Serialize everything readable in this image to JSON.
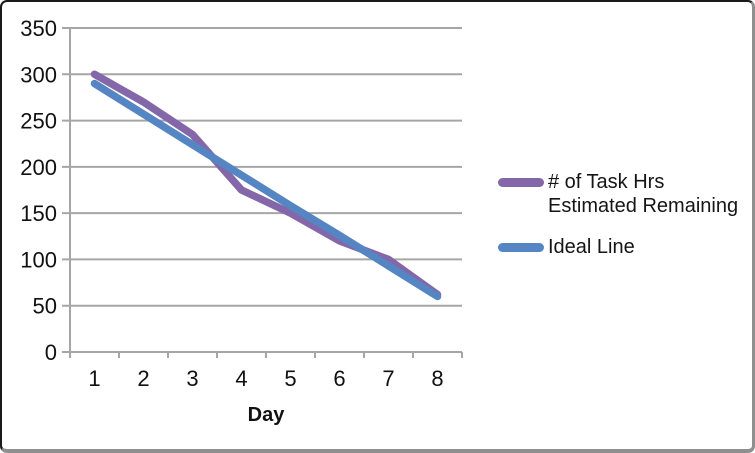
{
  "chart_data": {
    "type": "line",
    "title": "",
    "xlabel": "Day",
    "ylabel": "",
    "categories": [
      1,
      2,
      3,
      4,
      5,
      6,
      7,
      8
    ],
    "x_tick_labels": [
      "1",
      "2",
      "3",
      "4",
      "5",
      "6",
      "7",
      "8"
    ],
    "y_tick_labels": [
      "0",
      "50",
      "100",
      "150",
      "200",
      "250",
      "300",
      "350"
    ],
    "ylim": [
      0,
      350
    ],
    "grid": true,
    "legend_position": "right",
    "series": [
      {
        "name": "# of Task Hrs Estimated Remaining",
        "color": "#8467A8",
        "values": [
          300,
          270,
          235,
          175,
          150,
          120,
          100,
          62
        ]
      },
      {
        "name": "Ideal Line",
        "color": "#5586C3",
        "values": [
          290,
          257,
          224,
          191,
          158,
          126,
          93,
          60
        ]
      }
    ]
  },
  "legend": {
    "items": [
      {
        "lines": [
          "# of Task Hrs",
          "Estimated Remaining"
        ],
        "color": "#8467A8"
      },
      {
        "lines": [
          "Ideal Line"
        ],
        "color": "#5586C3"
      }
    ]
  },
  "colors": {
    "grid": "#A6A6A6",
    "axis": "#A6A6A6",
    "tick_text": "#111111",
    "series1": "#8467A8",
    "series2": "#5586C3",
    "frame_dark": "#1A1A1A",
    "frame_light": "#8F8F8F",
    "background": "#FFFFFF"
  }
}
